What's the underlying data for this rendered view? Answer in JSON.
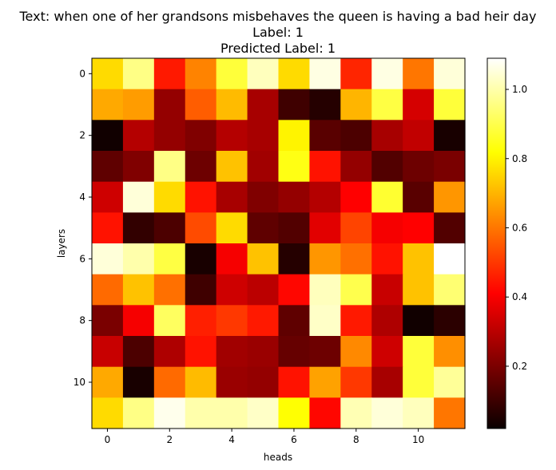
{
  "chart_data": {
    "type": "heatmap",
    "title_lines": [
      "Text: when one of her grandsons misbehaves the queen is having a bad heir day",
      "Label: 1",
      "Predicted Label: 1"
    ],
    "xlabel": "heads",
    "ylabel": "layers",
    "x_ticks": [
      0,
      2,
      4,
      6,
      8,
      10
    ],
    "y_ticks": [
      0,
      2,
      4,
      6,
      8,
      10
    ],
    "x_tick_labels": [
      "0",
      "2",
      "4",
      "6",
      "8",
      "10"
    ],
    "y_tick_labels": [
      "0",
      "2",
      "4",
      "6",
      "8",
      "10"
    ],
    "colormap": "hot",
    "vmin": 0.02,
    "vmax": 1.09,
    "colorbar_ticks": [
      0.2,
      0.4,
      0.6,
      0.8,
      1.0
    ],
    "colorbar_tick_labels": [
      "0.2",
      "0.4",
      "0.6",
      "0.8",
      "1.0"
    ],
    "rows": 12,
    "cols": 12,
    "values": [
      [
        0.76,
        0.96,
        0.45,
        0.62,
        0.88,
        1.02,
        0.76,
        1.06,
        0.47,
        1.06,
        0.6,
        1.05
      ],
      [
        0.68,
        0.66,
        0.23,
        0.56,
        0.71,
        0.26,
        0.1,
        0.06,
        0.7,
        0.89,
        0.33,
        0.88
      ],
      [
        0.03,
        0.28,
        0.23,
        0.2,
        0.28,
        0.26,
        0.8,
        0.14,
        0.12,
        0.26,
        0.3,
        0.04
      ],
      [
        0.15,
        0.2,
        0.96,
        0.17,
        0.72,
        0.25,
        0.84,
        0.44,
        0.23,
        0.13,
        0.17,
        0.19
      ],
      [
        0.32,
        1.05,
        0.76,
        0.44,
        0.26,
        0.2,
        0.23,
        0.28,
        0.4,
        0.87,
        0.14,
        0.65
      ],
      [
        0.44,
        0.08,
        0.12,
        0.53,
        0.76,
        0.15,
        0.13,
        0.35,
        0.52,
        0.38,
        0.4,
        0.13
      ],
      [
        1.05,
        1.0,
        0.89,
        0.04,
        0.38,
        0.72,
        0.06,
        0.65,
        0.59,
        0.44,
        0.72,
        1.09
      ],
      [
        0.58,
        0.72,
        0.59,
        0.1,
        0.32,
        0.29,
        0.42,
        1.02,
        0.9,
        0.31,
        0.72,
        0.94
      ],
      [
        0.19,
        0.38,
        0.92,
        0.46,
        0.5,
        0.45,
        0.15,
        1.03,
        0.45,
        0.27,
        0.03,
        0.07
      ],
      [
        0.31,
        0.12,
        0.27,
        0.44,
        0.25,
        0.24,
        0.16,
        0.17,
        0.63,
        0.32,
        0.88,
        0.64
      ],
      [
        0.68,
        0.04,
        0.58,
        0.71,
        0.24,
        0.23,
        0.44,
        0.67,
        0.5,
        0.26,
        0.88,
        0.98
      ],
      [
        0.76,
        0.96,
        1.07,
        1.0,
        1.0,
        1.03,
        0.82,
        0.42,
        1.01,
        1.05,
        1.02,
        0.6
      ]
    ]
  }
}
